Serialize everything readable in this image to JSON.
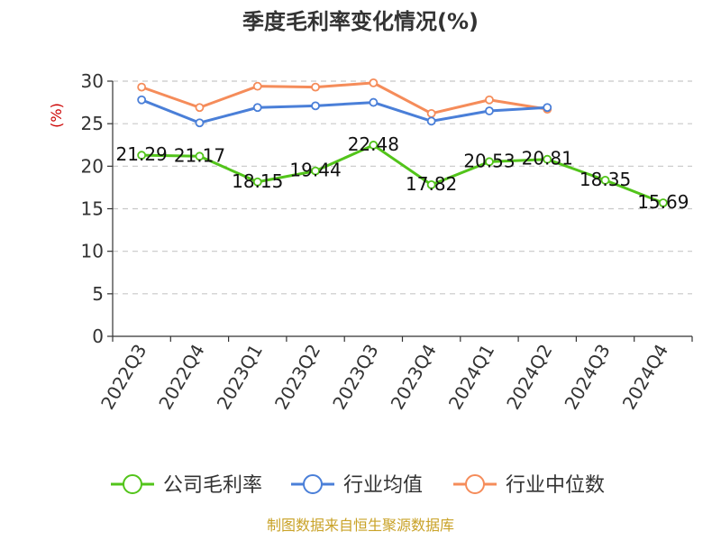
{
  "chart_data": {
    "type": "line",
    "title": "季度毛利率变化情况(%)",
    "ylabel": "(%)",
    "categories": [
      "2022Q3",
      "2022Q4",
      "2023Q1",
      "2023Q2",
      "2023Q3",
      "2023Q4",
      "2024Q1",
      "2024Q2",
      "2024Q3",
      "2024Q4"
    ],
    "ylim": [
      0,
      30
    ],
    "yticks": [
      0,
      5,
      10,
      15,
      20,
      25,
      30
    ],
    "grid": true,
    "legend_position": "bottom",
    "series": [
      {
        "name": "公司毛利率",
        "color": "#52c41a",
        "values": [
          21.29,
          21.17,
          18.15,
          19.44,
          22.48,
          17.82,
          20.53,
          20.81,
          18.35,
          15.69
        ],
        "labels": [
          "21.29",
          "21.17",
          "18.15",
          "19.44",
          "22.48",
          "17.82",
          "20.53",
          "20.81",
          "18.35",
          "15.69"
        ]
      },
      {
        "name": "行业均值",
        "color": "#4a7fd8",
        "values": [
          27.8,
          25.1,
          26.9,
          27.1,
          27.5,
          25.3,
          26.5,
          26.9,
          null,
          null
        ]
      },
      {
        "name": "行业中位数",
        "color": "#f58c5a",
        "values": [
          29.3,
          26.9,
          29.4,
          29.3,
          29.8,
          26.2,
          27.8,
          26.7,
          null,
          null
        ]
      }
    ]
  },
  "source": "制图数据来自恒生聚源数据库"
}
